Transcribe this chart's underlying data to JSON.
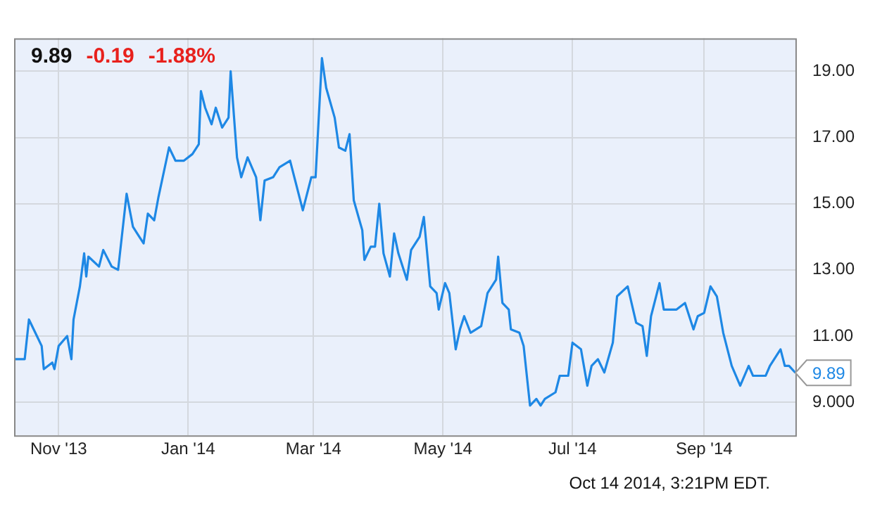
{
  "chart_data": {
    "type": "line",
    "title": "9.89 -0.19 -1.88%",
    "x": [
      "2013-10-11",
      "2013-10-16",
      "2013-10-18",
      "2013-10-21",
      "2013-10-24",
      "2013-10-25",
      "2013-10-29",
      "2013-10-30",
      "2013-11-01",
      "2013-11-05",
      "2013-11-07",
      "2013-11-08",
      "2013-11-11",
      "2013-11-13",
      "2013-11-14",
      "2013-11-15",
      "2013-11-20",
      "2013-11-22",
      "2013-11-26",
      "2013-11-29",
      "2013-12-03",
      "2013-12-06",
      "2013-12-09",
      "2013-12-11",
      "2013-12-13",
      "2013-12-16",
      "2013-12-18",
      "2013-12-23",
      "2013-12-26",
      "2013-12-30",
      "2014-01-03",
      "2014-01-06",
      "2014-01-07",
      "2014-01-09",
      "2014-01-12",
      "2014-01-14",
      "2014-01-17",
      "2014-01-20",
      "2014-01-21",
      "2014-01-24",
      "2014-01-26",
      "2014-01-29",
      "2014-02-02",
      "2014-02-04",
      "2014-02-06",
      "2014-02-10",
      "2014-02-13",
      "2014-02-18",
      "2014-02-24",
      "2014-02-28",
      "2014-03-02",
      "2014-03-05",
      "2014-03-07",
      "2014-03-11",
      "2014-03-13",
      "2014-03-16",
      "2014-03-18",
      "2014-03-20",
      "2014-03-24",
      "2014-03-25",
      "2014-03-28",
      "2014-03-30",
      "2014-04-01",
      "2014-04-03",
      "2014-04-06",
      "2014-04-08",
      "2014-04-10",
      "2014-04-14",
      "2014-04-16",
      "2014-04-20",
      "2014-04-22",
      "2014-04-25",
      "2014-04-28",
      "2014-04-29",
      "2014-05-02",
      "2014-05-04",
      "2014-05-07",
      "2014-05-09",
      "2014-05-11",
      "2014-05-14",
      "2014-05-19",
      "2014-05-22",
      "2014-05-26",
      "2014-05-27",
      "2014-05-29",
      "2014-06-01",
      "2014-06-02",
      "2014-06-06",
      "2014-06-08",
      "2014-06-11",
      "2014-06-14",
      "2014-06-16",
      "2014-06-18",
      "2014-06-23",
      "2014-06-25",
      "2014-06-29",
      "2014-07-01",
      "2014-07-05",
      "2014-07-08",
      "2014-07-10",
      "2014-07-13",
      "2014-07-16",
      "2014-07-20",
      "2014-07-22",
      "2014-07-27",
      "2014-07-31",
      "2014-08-03",
      "2014-08-05",
      "2014-08-07",
      "2014-08-11",
      "2014-08-13",
      "2014-08-19",
      "2014-08-23",
      "2014-08-27",
      "2014-08-29",
      "2014-09-01",
      "2014-09-04",
      "2014-09-07",
      "2014-09-10",
      "2014-09-14",
      "2014-09-18",
      "2014-09-22",
      "2014-09-24",
      "2014-09-30",
      "2014-10-02",
      "2014-10-07",
      "2014-10-09",
      "2014-10-11",
      "2014-10-14"
    ],
    "series": [
      {
        "color": "#1e88e5",
        "values": [
          10.3,
          10.3,
          11.5,
          11.1,
          10.7,
          10.0,
          10.2,
          10.0,
          10.7,
          11.0,
          10.3,
          11.5,
          12.5,
          13.5,
          12.8,
          13.4,
          13.1,
          13.6,
          13.1,
          13.0,
          15.3,
          14.3,
          14.0,
          13.8,
          14.7,
          14.5,
          15.2,
          16.7,
          16.3,
          16.3,
          16.5,
          16.8,
          18.4,
          17.9,
          17.4,
          17.9,
          17.3,
          17.6,
          19.0,
          16.4,
          15.8,
          16.4,
          15.8,
          14.5,
          15.7,
          15.8,
          16.1,
          16.3,
          14.8,
          15.8,
          15.8,
          19.4,
          18.5,
          17.6,
          16.7,
          16.6,
          17.1,
          15.1,
          14.2,
          13.3,
          13.7,
          13.7,
          15.0,
          13.5,
          12.8,
          14.1,
          13.5,
          12.7,
          13.6,
          14.0,
          14.6,
          12.5,
          12.3,
          11.8,
          12.6,
          12.3,
          10.6,
          11.2,
          11.6,
          11.1,
          11.3,
          12.3,
          12.7,
          13.4,
          12.0,
          11.8,
          11.2,
          11.1,
          10.7,
          8.9,
          9.1,
          8.9,
          9.1,
          9.3,
          9.8,
          9.8,
          10.8,
          10.6,
          9.5,
          10.1,
          10.3,
          9.9,
          10.8,
          12.2,
          12.5,
          11.4,
          11.3,
          10.4,
          11.6,
          12.6,
          11.8,
          11.8,
          12.0,
          11.2,
          11.6,
          11.7,
          12.5,
          12.2,
          11.1,
          10.1,
          9.5,
          10.1,
          9.8,
          9.8,
          10.1,
          10.6,
          10.1,
          10.1,
          9.89
        ]
      }
    ],
    "xlim": [
      "2013-10-11",
      "2014-10-14"
    ],
    "xticks": [
      {
        "value": "2013-11-01",
        "label": "Nov '13"
      },
      {
        "value": "2014-01-01",
        "label": "Jan '14"
      },
      {
        "value": "2014-03-01",
        "label": "Mar '14"
      },
      {
        "value": "2014-05-01",
        "label": "May '14"
      },
      {
        "value": "2014-07-01",
        "label": "Jul '14"
      },
      {
        "value": "2014-09-01",
        "label": "Sep '14"
      }
    ],
    "ylim": [
      8,
      20
    ],
    "yticks": [
      {
        "value": 9,
        "label": "9.000"
      },
      {
        "value": 11,
        "label": "11.00"
      },
      {
        "value": 13,
        "label": "13.00"
      },
      {
        "value": 15,
        "label": "15.00"
      },
      {
        "value": 17,
        "label": "17.00"
      },
      {
        "value": 19,
        "label": "19.00"
      }
    ],
    "grid": true,
    "legend": false,
    "marker": "none",
    "line_style": "solid",
    "annotations": [
      {
        "text": "9.89",
        "x": "2014-10-14",
        "y": 9.89
      },
      "Oct 14 2014, 3:21PM EDT."
    ]
  }
}
